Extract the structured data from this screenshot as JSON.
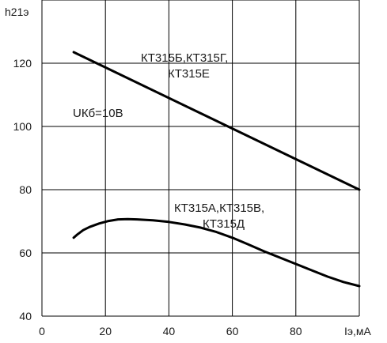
{
  "chart_data": {
    "type": "line",
    "ylabel": "h21э",
    "xlabel": "Iэ,мА",
    "xlim": [
      0,
      100
    ],
    "ylim": [
      40,
      140
    ],
    "x_ticks": [
      "0",
      "20",
      "40",
      "60",
      "80"
    ],
    "y_ticks": [
      "40",
      "60",
      "80",
      "100",
      "120"
    ],
    "grid": true,
    "series": [
      {
        "name": "КТ315Б,КТ315Г, КТ315Е",
        "x": [
          10,
          100
        ],
        "y": [
          123.5,
          80
        ]
      },
      {
        "name": "КТ315А,КТ315В, КТ315Д",
        "x": [
          10,
          11,
          13,
          15,
          18,
          21,
          24,
          27,
          30,
          35,
          40,
          45,
          50,
          55,
          60,
          65,
          70,
          75,
          80,
          85,
          90,
          95,
          100
        ],
        "y": [
          64.8,
          65.7,
          67.2,
          68.2,
          69.3,
          70.1,
          70.6,
          70.7,
          70.6,
          70.3,
          69.8,
          69.0,
          68.0,
          66.6,
          64.8,
          62.7,
          60.5,
          58.5,
          56.5,
          54.5,
          52.5,
          50.8,
          49.5
        ]
      }
    ],
    "annotations": [
      {
        "lines": [
          "КТ315Б,КТ315Г,",
          "КТ315Е"
        ]
      },
      {
        "lines": [
          "UКб=10В"
        ]
      },
      {
        "lines": [
          "КТ315А,КТ315В,",
          "КТ315Д"
        ]
      }
    ]
  }
}
